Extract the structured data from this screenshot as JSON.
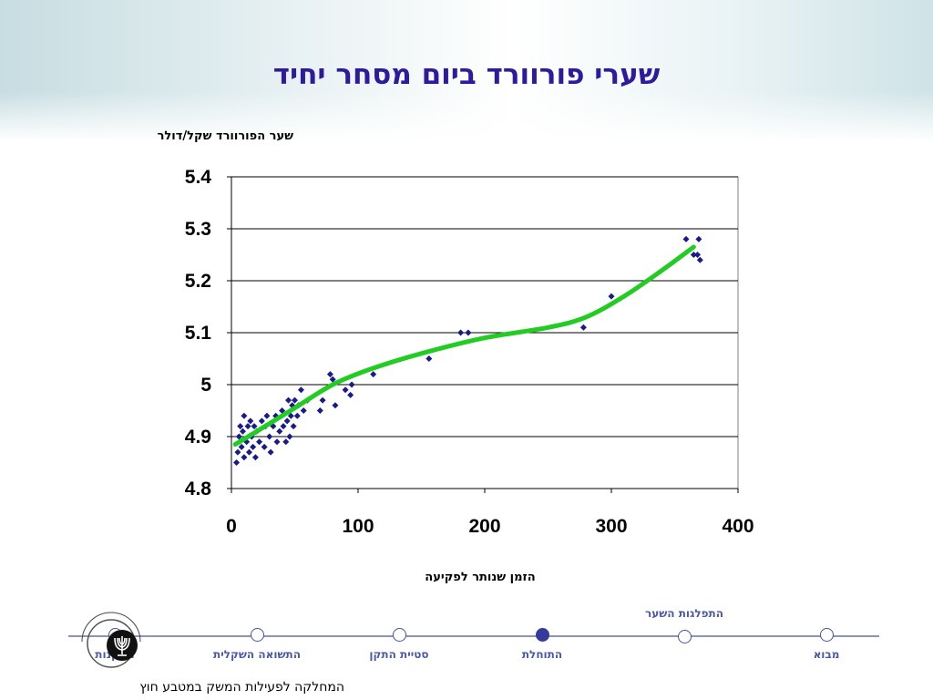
{
  "title": "שערי פורוורד ביום מסחר יחיד",
  "chart_data": {
    "type": "scatter",
    "title": "שערי פורוורד ביום מסחר יחיד",
    "ylabel": "שער הפורוורד שקל/דולר",
    "xlabel": "הזמן שנותר לפקיעה",
    "xlim": [
      0,
      400
    ],
    "ylim": [
      4.8,
      5.4
    ],
    "x_ticks": [
      "0",
      "100",
      "200",
      "300",
      "400"
    ],
    "y_ticks": [
      "5.4",
      "5.3",
      "5.2",
      "5.1",
      "5",
      "4.9",
      "4.8"
    ],
    "grid": "horizontal",
    "legend": "none",
    "colors": {
      "points": "#1a1a8c",
      "fit": "#22cc22",
      "grid": "#000000"
    },
    "series": [
      {
        "type": "scatter",
        "points": [
          [
            4,
            4.85
          ],
          [
            5,
            4.87
          ],
          [
            6,
            4.9
          ],
          [
            7,
            4.92
          ],
          [
            8,
            4.88
          ],
          [
            9,
            4.91
          ],
          [
            10,
            4.86
          ],
          [
            10,
            4.94
          ],
          [
            12,
            4.89
          ],
          [
            13,
            4.92
          ],
          [
            14,
            4.87
          ],
          [
            15,
            4.93
          ],
          [
            16,
            4.9
          ],
          [
            17,
            4.88
          ],
          [
            18,
            4.92
          ],
          [
            19,
            4.86
          ],
          [
            20,
            4.91
          ],
          [
            22,
            4.89
          ],
          [
            24,
            4.93
          ],
          [
            26,
            4.88
          ],
          [
            27,
            4.92
          ],
          [
            28,
            4.94
          ],
          [
            30,
            4.9
          ],
          [
            31,
            4.87
          ],
          [
            33,
            4.92
          ],
          [
            35,
            4.94
          ],
          [
            36,
            4.89
          ],
          [
            38,
            4.91
          ],
          [
            40,
            4.95
          ],
          [
            41,
            4.92
          ],
          [
            43,
            4.89
          ],
          [
            44,
            4.93
          ],
          [
            45,
            4.97
          ],
          [
            46,
            4.9
          ],
          [
            47,
            4.94
          ],
          [
            48,
            4.96
          ],
          [
            49,
            4.92
          ],
          [
            50,
            4.97
          ],
          [
            52,
            4.94
          ],
          [
            53,
            4.96
          ],
          [
            55,
            4.99
          ],
          [
            57,
            4.95
          ],
          [
            60,
            4.97
          ],
          [
            70,
            4.95
          ],
          [
            72,
            4.97
          ],
          [
            78,
            5.02
          ],
          [
            80,
            5.01
          ],
          [
            82,
            4.96
          ],
          [
            90,
            4.99
          ],
          [
            94,
            4.98
          ],
          [
            95,
            5.0
          ],
          [
            112,
            5.02
          ],
          [
            156,
            5.05
          ],
          [
            181,
            5.1
          ],
          [
            187,
            5.1
          ],
          [
            278,
            5.11
          ],
          [
            300,
            5.17
          ],
          [
            359,
            5.28
          ],
          [
            365,
            5.25
          ],
          [
            368,
            5.25
          ],
          [
            369,
            5.28
          ],
          [
            370,
            5.24
          ]
        ]
      },
      {
        "type": "line",
        "points": [
          [
            3,
            4.885
          ],
          [
            20,
            4.91
          ],
          [
            50,
            4.955
          ],
          [
            80,
            5.0
          ],
          [
            110,
            5.03
          ],
          [
            150,
            5.06
          ],
          [
            200,
            5.09
          ],
          [
            250,
            5.11
          ],
          [
            280,
            5.13
          ],
          [
            310,
            5.17
          ],
          [
            340,
            5.22
          ],
          [
            365,
            5.265
          ]
        ]
      }
    ]
  },
  "nav": {
    "items": [
      {
        "label": "מבוא",
        "active": false
      },
      {
        "label": "התפלגות השער",
        "active": false
      },
      {
        "label": "התוחלת",
        "active": true
      },
      {
        "label": "סטיית התקן",
        "active": false
      },
      {
        "label": "התשואה השקלית",
        "active": false
      },
      {
        "label": "מסקנות",
        "active": false
      }
    ]
  },
  "logo": {
    "text": "בנק ישראל BANK OF ISRAEL"
  },
  "footer": "המחלקה לפעילות המשק במטבע חוץ"
}
